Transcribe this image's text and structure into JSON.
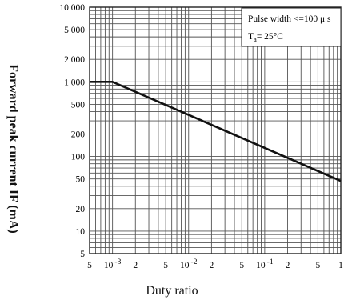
{
  "chart_data": {
    "type": "line",
    "xscale": "log",
    "yscale": "log",
    "xlim": [
      0.0005,
      1
    ],
    "ylim": [
      5,
      10000
    ],
    "grid": true,
    "xlabel": "Duty ratio",
    "ylabel": "Forward peak current IF (mA)",
    "x_ticks": [
      {
        "value": 0.0005,
        "label": "5"
      },
      {
        "value": 0.001,
        "base": "10",
        "exp": "-3"
      },
      {
        "value": 0.002,
        "label": "2"
      },
      {
        "value": 0.005,
        "label": "5"
      },
      {
        "value": 0.01,
        "base": "10",
        "exp": "-2"
      },
      {
        "value": 0.02,
        "label": "2"
      },
      {
        "value": 0.05,
        "label": "5"
      },
      {
        "value": 0.1,
        "base": "10",
        "exp": "-1"
      },
      {
        "value": 0.2,
        "label": "2"
      },
      {
        "value": 0.5,
        "label": "5"
      },
      {
        "value": 1,
        "label": "1"
      }
    ],
    "y_ticks": [
      {
        "value": 10000,
        "label": "10 000"
      },
      {
        "value": 5000,
        "label": "5 000"
      },
      {
        "value": 2000,
        "label": "2 000"
      },
      {
        "value": 1000,
        "label": "1 000"
      },
      {
        "value": 500,
        "label": "500"
      },
      {
        "value": 200,
        "label": "200"
      },
      {
        "value": 100,
        "label": "100"
      },
      {
        "value": 50,
        "label": "50"
      },
      {
        "value": 20,
        "label": "20"
      },
      {
        "value": 10,
        "label": "10"
      },
      {
        "value": 5,
        "label": "5"
      }
    ],
    "series": [
      {
        "x": [
          0.0005,
          0.001,
          1
        ],
        "y": [
          1000,
          1000,
          47
        ]
      }
    ],
    "annotations": {
      "line1": "Pulse width <=100 μ s",
      "line2_main": "T",
      "line2_sub": "a",
      "line2_rest": "= 25°C"
    },
    "colors": {
      "line": "#111111",
      "grid": "#555555",
      "frame": "#222222"
    }
  }
}
